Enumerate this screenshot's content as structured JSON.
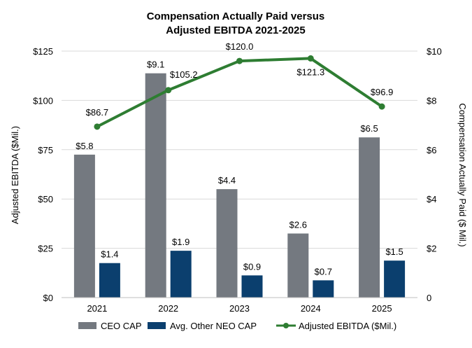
{
  "chart_data": {
    "type": "bar",
    "title_line1": "Compensation Actually Paid versus",
    "title_line2": "Adjusted EBITDA 2021-2025",
    "categories": [
      "2021",
      "2022",
      "2023",
      "2024",
      "2025"
    ],
    "ylabel_left": "Adjusted EBITDA ($Mil.)",
    "ylabel_right": "Compensation Actually Paid ($ Mil.)",
    "ylim_left": [
      0,
      125
    ],
    "ylim_right": [
      0,
      10
    ],
    "left_ticks": [
      "$0",
      "$25",
      "$50",
      "$75",
      "$100",
      "$125"
    ],
    "right_ticks": [
      "0",
      "$2",
      "$4",
      "$6",
      "$8",
      "$10"
    ],
    "grid": true,
    "legend_position": "bottom",
    "series": [
      {
        "name": "CEO CAP",
        "kind": "bar",
        "axis": "right",
        "color": "#747980",
        "values": [
          5.8,
          9.1,
          4.4,
          2.6,
          6.5
        ],
        "labels": [
          "$5.8",
          "$9.1",
          "$4.4",
          "$2.6",
          "$6.5"
        ]
      },
      {
        "name": "Avg. Other NEO CAP",
        "kind": "bar",
        "axis": "right",
        "color": "#0b3f6e",
        "values": [
          1.4,
          1.9,
          0.9,
          0.7,
          1.5
        ],
        "labels": [
          "$1.4",
          "$1.9",
          "$0.9",
          "$0.7",
          "$1.5"
        ]
      },
      {
        "name": "Adjusted EBITDA ($Mil.)",
        "kind": "line",
        "axis": "left",
        "color": "#2e7d32",
        "values": [
          86.7,
          105.2,
          120.0,
          121.3,
          96.9
        ],
        "labels": [
          "$86.7",
          "$105.2",
          "$120.0",
          "$121.3",
          "$96.9"
        ]
      }
    ]
  }
}
